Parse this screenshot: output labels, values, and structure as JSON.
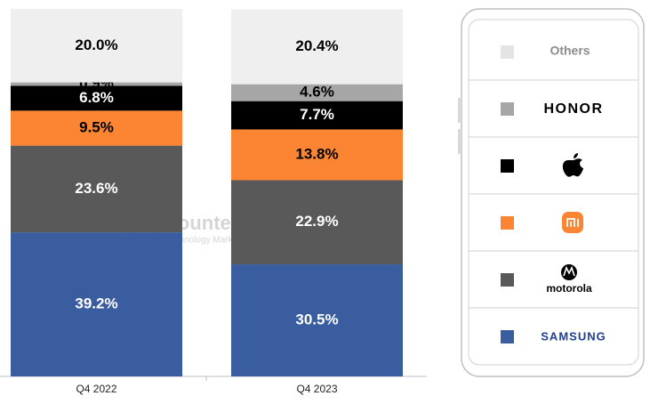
{
  "chart_data": {
    "type": "stacked-bar",
    "categories": [
      "Q4 2022",
      "Q4 2023"
    ],
    "ylim": [
      0,
      100
    ],
    "series": [
      {
        "name": "SAMSUNG",
        "color": "#3a5da0",
        "values": [
          39.2,
          30.5
        ],
        "value_labels": [
          "39.2%",
          "30.5%"
        ]
      },
      {
        "name": "motorola",
        "color": "#595959",
        "values": [
          23.6,
          22.9
        ],
        "value_labels": [
          "23.6%",
          "22.9%"
        ]
      },
      {
        "name": null,
        "color": "#fb8532",
        "values": [
          9.5,
          13.8
        ],
        "value_labels": [
          "9.5%",
          "13.8%"
        ]
      },
      {
        "name": null,
        "color": "#000000",
        "values": [
          6.8,
          7.7
        ],
        "value_labels": [
          "6.8%",
          "7.7%"
        ]
      },
      {
        "name": "HONOR",
        "color": "#a6a6a6",
        "values": [
          0.9,
          4.6
        ],
        "value_labels": [
          "0.9%",
          "4.6%"
        ]
      },
      {
        "name": "Others",
        "color": "#efefef",
        "values": [
          20.0,
          20.4
        ],
        "value_labels": [
          "20.0%",
          "20.4%"
        ]
      }
    ],
    "watermark": {
      "title": "Counterpoint",
      "subtitle": "Technology Market Research"
    }
  }
}
